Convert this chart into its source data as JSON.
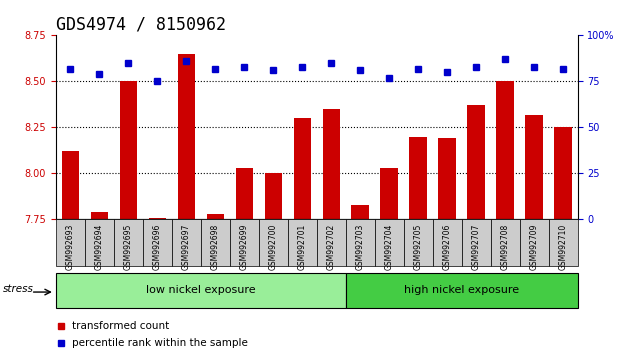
{
  "title": "GDS4974 / 8150962",
  "samples": [
    "GSM992693",
    "GSM992694",
    "GSM992695",
    "GSM992696",
    "GSM992697",
    "GSM992698",
    "GSM992699",
    "GSM992700",
    "GSM992701",
    "GSM992702",
    "GSM992703",
    "GSM992704",
    "GSM992705",
    "GSM992706",
    "GSM992707",
    "GSM992708",
    "GSM992709",
    "GSM992710"
  ],
  "bar_values": [
    8.12,
    7.79,
    8.5,
    7.76,
    8.65,
    7.78,
    8.03,
    8.0,
    8.3,
    8.35,
    7.83,
    8.03,
    8.2,
    8.19,
    8.37,
    8.5,
    8.32,
    8.25
  ],
  "percentile_values": [
    82,
    79,
    85,
    75,
    86,
    82,
    83,
    81,
    83,
    85,
    81,
    77,
    82,
    80,
    83,
    87,
    83,
    82
  ],
  "ylim": [
    7.75,
    8.75
  ],
  "yticks": [
    7.75,
    8.0,
    8.25,
    8.5,
    8.75
  ],
  "right_yticks": [
    0,
    25,
    50,
    75,
    100
  ],
  "bar_color": "#CC0000",
  "dot_color": "#0000CC",
  "group1_label": "low nickel exposure",
  "group2_label": "high nickel exposure",
  "group1_count": 10,
  "group2_count": 8,
  "stress_label": "stress",
  "legend1": "transformed count",
  "legend2": "percentile rank within the sample",
  "background_plot": "#FFFFFF",
  "background_xticklabels": "#CCCCCC",
  "background_group1": "#99EE99",
  "background_group2": "#44CC44",
  "grid_color": "#000000",
  "title_fontsize": 12,
  "tick_fontsize": 7,
  "label_fontsize": 8
}
